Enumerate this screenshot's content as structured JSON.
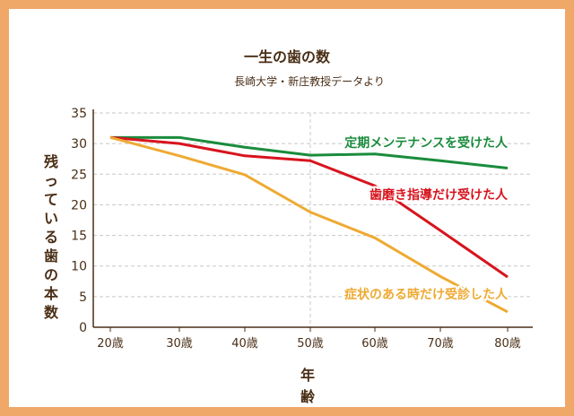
{
  "chart_data": {
    "type": "line",
    "title": "一生の歯の数",
    "subtitle": "長崎大学・新庄教授データより",
    "xlabel": "年　齢",
    "ylabel": "残っている歯の本数",
    "categories": [
      "20歳",
      "30歳",
      "40歳",
      "50歳",
      "60歳",
      "70歳",
      "80歳"
    ],
    "ylim": [
      0,
      35
    ],
    "yticks": [
      0,
      5,
      10,
      15,
      20,
      25,
      30,
      35
    ],
    "grid": true,
    "series": [
      {
        "name": "定期メンテナンスを受けた人",
        "color": "#1a8c3c",
        "values": [
          31,
          31,
          29.4,
          28.1,
          28.3,
          27.2,
          26
        ]
      },
      {
        "name": "歯磨き指導だけ受けた人",
        "color": "#d7141e",
        "values": [
          31,
          30,
          28,
          27.2,
          23.1,
          15.8,
          8.2
        ]
      },
      {
        "name": "症状のある時だけ受診した人",
        "color": "#eeaa33",
        "values": [
          31,
          28,
          24.9,
          18.8,
          14.6,
          8.3,
          2.5
        ]
      }
    ]
  },
  "colors": {
    "frame": "#f0a868",
    "text": "#4a2e16"
  }
}
